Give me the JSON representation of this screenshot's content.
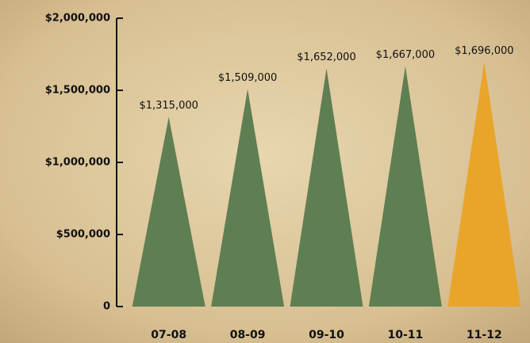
{
  "chart_data": {
    "type": "triangle-bar",
    "categories": [
      "07-08",
      "08-09",
      "09-10",
      "10-11",
      "11-12"
    ],
    "values": [
      1315000,
      1509000,
      1652000,
      1667000,
      1696000
    ],
    "value_labels": [
      "$1,315,000",
      "$1,509,000",
      "$1,652,000",
      "$1,667,000",
      "$1,696,000"
    ],
    "colors": [
      "#5e7f52",
      "#5e7f52",
      "#5e7f52",
      "#5e7f52",
      "#e8a52a"
    ],
    "ylim": [
      0,
      2000000
    ],
    "yticks": [
      0,
      {
        "value": 500000,
        "label": "$500,000"
      },
      {
        "value": 1000000,
        "label": "$1,000,000"
      },
      {
        "value": 1500000,
        "label": "$1,500,000"
      },
      {
        "value": 2000000,
        "label": "$2,000,000"
      }
    ]
  }
}
